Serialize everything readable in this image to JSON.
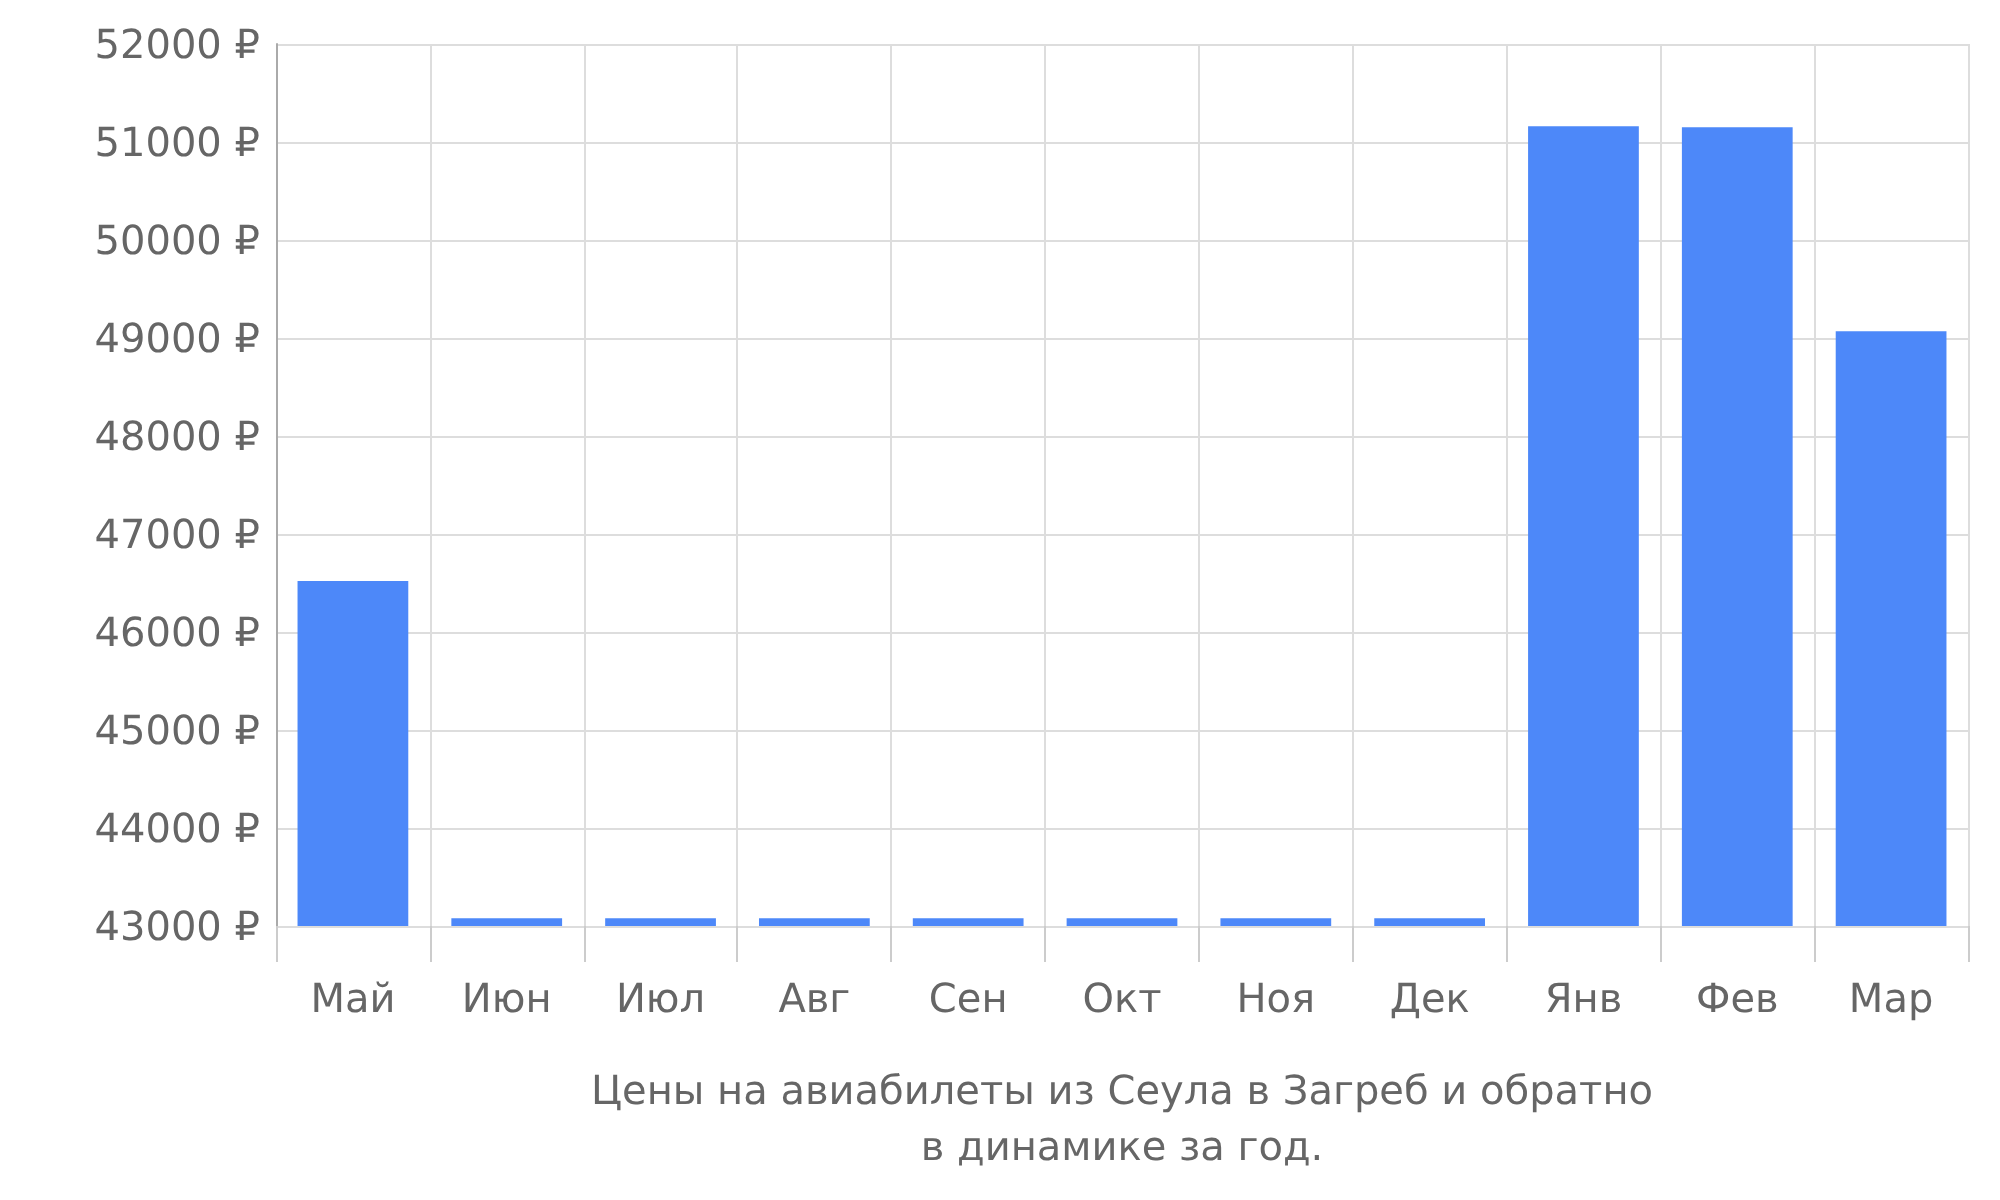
{
  "chart_data": {
    "type": "bar",
    "xlabel": "Цены на авиабилеты из Сеула в Загреб и обратно\nв динамике за год.",
    "categories": [
      "Май",
      "Июн",
      "Июл",
      "Авг",
      "Сен",
      "Окт",
      "Ноя",
      "Дек",
      "Янв",
      "Фев",
      "Мар"
    ],
    "values": [
      46520,
      43080,
      43080,
      43080,
      43080,
      43080,
      43080,
      43080,
      51160,
      51150,
      49070
    ],
    "color": "#4d88f9",
    "ylim": [
      43000,
      52000
    ],
    "yticks": [
      {
        "value": 43000,
        "label": "43000 ₽"
      },
      {
        "value": 44000,
        "label": "44000 ₽"
      },
      {
        "value": 45000,
        "label": "45000 ₽"
      },
      {
        "value": 46000,
        "label": "46000 ₽"
      },
      {
        "value": 47000,
        "label": "47000 ₽"
      },
      {
        "value": 48000,
        "label": "48000 ₽"
      },
      {
        "value": 49000,
        "label": "49000 ₽"
      },
      {
        "value": 50000,
        "label": "50000 ₽"
      },
      {
        "value": 51000,
        "label": "51000 ₽"
      },
      {
        "value": 52000,
        "label": "52000 ₽"
      }
    ],
    "grid": true
  }
}
